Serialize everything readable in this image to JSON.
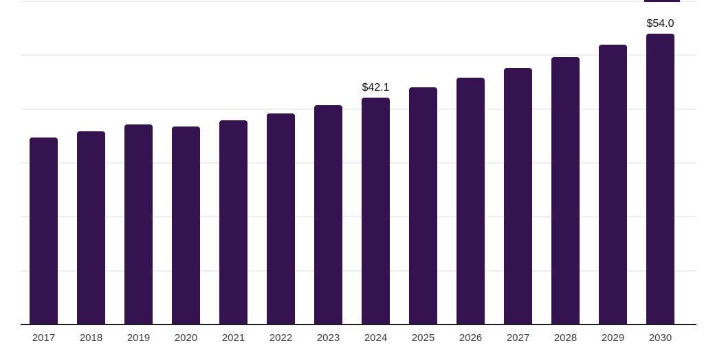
{
  "chart_data": {
    "type": "bar",
    "categories": [
      "2017",
      "2018",
      "2019",
      "2020",
      "2021",
      "2022",
      "2023",
      "2024",
      "2025",
      "2026",
      "2027",
      "2028",
      "2029",
      "2030"
    ],
    "values": [
      34.7,
      35.9,
      37.1,
      36.8,
      37.9,
      39.2,
      40.7,
      42.1,
      44.0,
      45.8,
      47.6,
      49.7,
      52.0,
      54.0
    ],
    "point_labels": [
      "",
      "",
      "",
      "",
      "",
      "",
      "",
      "$42.1",
      "",
      "",
      "",
      "",
      "",
      "$54.0"
    ],
    "title": "",
    "xlabel": "",
    "ylabel": "",
    "ylim": [
      0,
      60
    ],
    "gridline_step": 10,
    "grid": true,
    "legend": false,
    "colors": {
      "bar": "#351250",
      "gridline": "#f0f0f2",
      "axis_line": "#1f1f1f",
      "tick_label": "#3d3d3d",
      "value_label": "#111111",
      "background": "#ffffff"
    }
  }
}
